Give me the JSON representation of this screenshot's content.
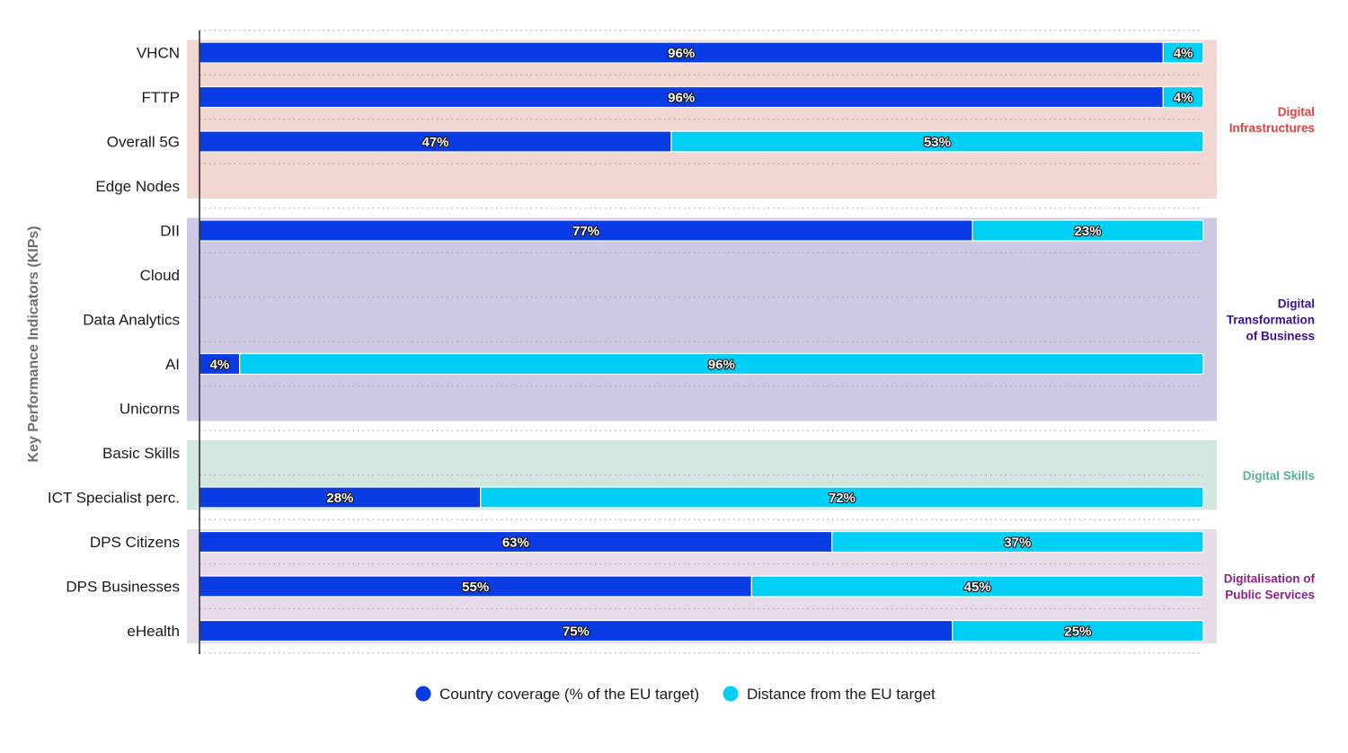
{
  "chart_data": {
    "type": "bar",
    "orientation": "horizontal",
    "stacked": true,
    "ylabel": "Key Performance Indicators (KIPs)",
    "xlim": [
      0,
      100
    ],
    "categories": [
      "VHCN",
      "FTTP",
      "Overall 5G",
      "Edge Nodes",
      "DII",
      "Cloud",
      "Data Analytics",
      "AI",
      "Unicorns",
      "Basic Skills",
      "ICT Specialist perc.",
      "DPS Citizens",
      "DPS Businesses",
      "eHealth"
    ],
    "series": [
      {
        "name": "Country coverage (% of the EU target)",
        "color": "#0a3ce6",
        "values": [
          96,
          96,
          47,
          null,
          77,
          null,
          null,
          4,
          null,
          null,
          28,
          63,
          55,
          75
        ],
        "labels": [
          "96%",
          "96%",
          "47%",
          "",
          "77%",
          "",
          "",
          "4%",
          "",
          "",
          "28%",
          "63%",
          "55%",
          "75%"
        ]
      },
      {
        "name": "Distance from the EU target",
        "color": "#00cff5",
        "values": [
          4,
          4,
          53,
          null,
          23,
          null,
          null,
          96,
          null,
          null,
          72,
          37,
          45,
          25
        ],
        "labels": [
          "4%",
          "4%",
          "53%",
          "",
          "23%",
          "",
          "",
          "96%",
          "",
          "",
          "72%",
          "37%",
          "45%",
          "25%"
        ]
      }
    ],
    "groups": [
      {
        "name": "Digital Infrastructures",
        "lines": [
          "Digital",
          "Infrastructures"
        ],
        "start": 0,
        "end": 3,
        "bg": "#f2d6d2",
        "text_color": "#e0403f"
      },
      {
        "name": "Digital Transformation of Business",
        "lines": [
          "Digital",
          "Transformation",
          "of Business"
        ],
        "start": 4,
        "end": 8,
        "bg": "#cdc9e4",
        "text_color": "#3c0fa0"
      },
      {
        "name": "Digital Skills",
        "lines": [
          "Digital Skills"
        ],
        "start": 9,
        "end": 10,
        "bg": "#d3e6e0",
        "text_color": "#53b39a"
      },
      {
        "name": "Digitalisation of Public Services",
        "lines": [
          "Digitalisation of",
          "Public Services"
        ],
        "start": 11,
        "end": 13,
        "bg": "#e6dce9",
        "text_color": "#961e8c"
      }
    ],
    "legend": {
      "position": "bottom",
      "items": [
        {
          "label": "Country coverage (% of the EU target)",
          "color": "#0a3ce6"
        },
        {
          "label": "Distance from the EU target",
          "color": "#00cff5"
        }
      ]
    }
  }
}
